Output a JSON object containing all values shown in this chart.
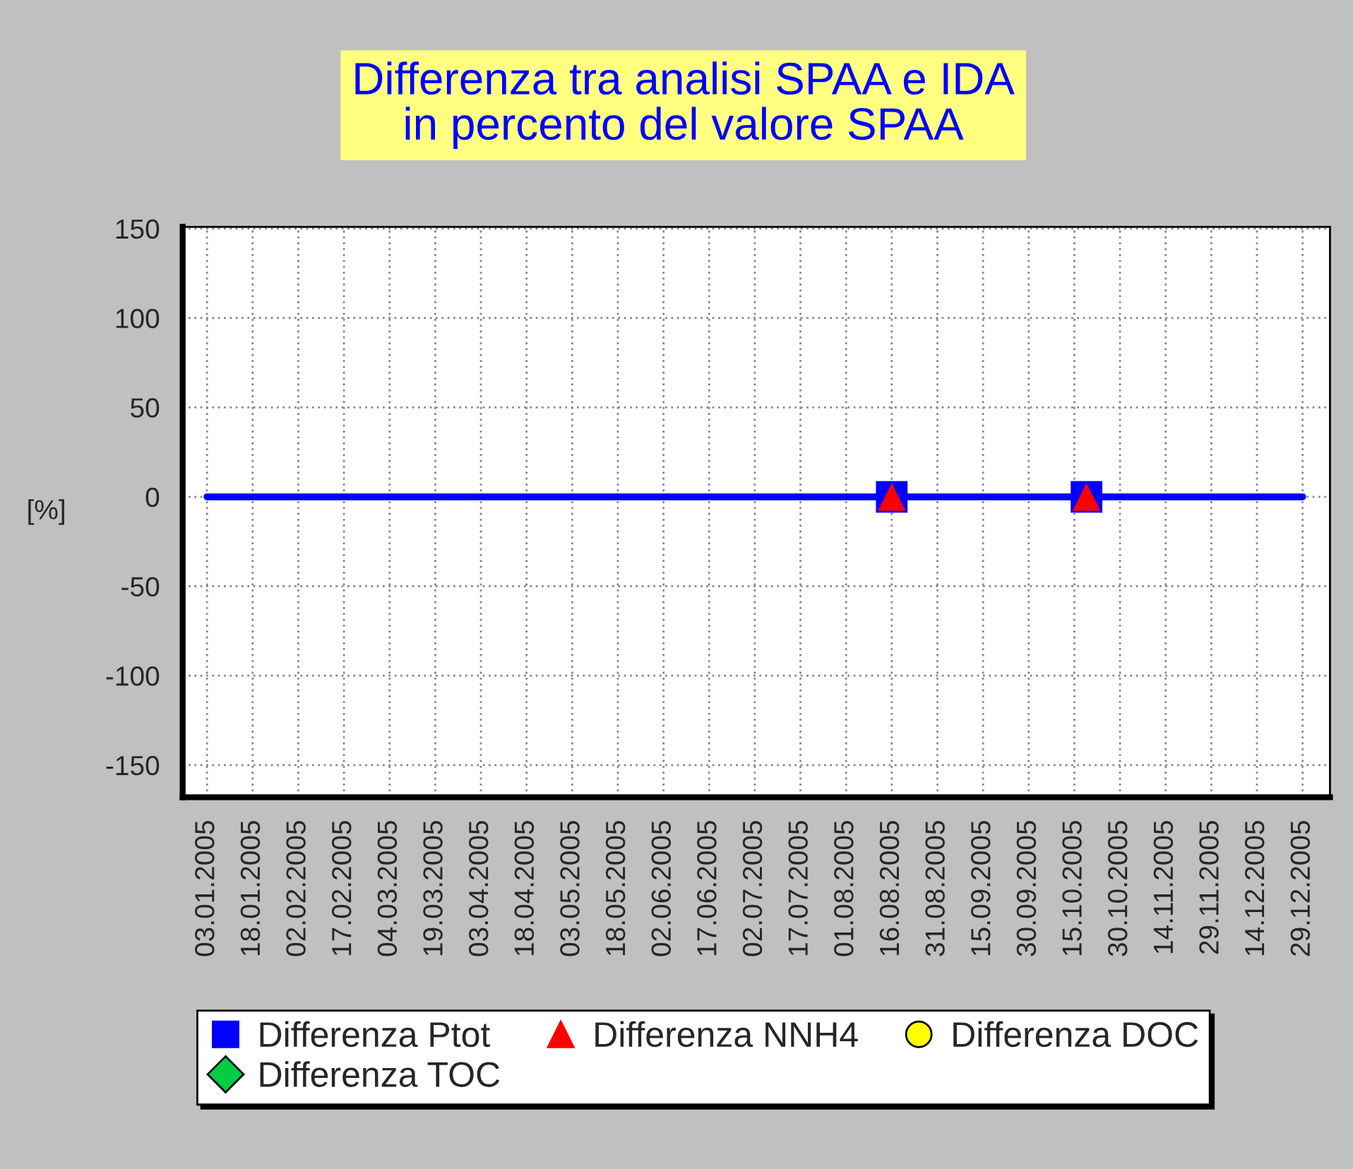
{
  "chart_data": {
    "type": "scatter",
    "title": "Differenza tra analisi SPAA e IDA\nin percento del valore SPAA",
    "ylabel": "[%]",
    "xlim": [
      "2004-12-26",
      "2006-01-07"
    ],
    "xticks": [
      {
        "value": "2005-01-03",
        "label": "03.01.2005"
      },
      {
        "value": "2005-01-18",
        "label": "18.01.2005"
      },
      {
        "value": "2005-02-02",
        "label": "02.02.2005"
      },
      {
        "value": "2005-02-17",
        "label": "17.02.2005"
      },
      {
        "value": "2005-03-04",
        "label": "04.03.2005"
      },
      {
        "value": "2005-03-19",
        "label": "19.03.2005"
      },
      {
        "value": "2005-04-03",
        "label": "03.04.2005"
      },
      {
        "value": "2005-04-18",
        "label": "18.04.2005"
      },
      {
        "value": "2005-05-03",
        "label": "03.05.2005"
      },
      {
        "value": "2005-05-18",
        "label": "18.05.2005"
      },
      {
        "value": "2005-06-02",
        "label": "02.06.2005"
      },
      {
        "value": "2005-06-17",
        "label": "17.06.2005"
      },
      {
        "value": "2005-07-02",
        "label": "02.07.2005"
      },
      {
        "value": "2005-07-17",
        "label": "17.07.2005"
      },
      {
        "value": "2005-08-01",
        "label": "01.08.2005"
      },
      {
        "value": "2005-08-16",
        "label": "16.08.2005"
      },
      {
        "value": "2005-08-31",
        "label": "31.08.2005"
      },
      {
        "value": "2005-09-15",
        "label": "15.09.2005"
      },
      {
        "value": "2005-09-30",
        "label": "30.09.2005"
      },
      {
        "value": "2005-10-15",
        "label": "15.10.2005"
      },
      {
        "value": "2005-10-30",
        "label": "30.10.2005"
      },
      {
        "value": "2005-11-14",
        "label": "14.11.2005"
      },
      {
        "value": "2005-11-29",
        "label": "29.11.2005"
      },
      {
        "value": "2005-12-14",
        "label": "14.12.2005"
      },
      {
        "value": "2005-12-29",
        "label": "29.12.2005"
      }
    ],
    "ylim": [
      -168,
      151
    ],
    "yticks": [
      -150,
      -100,
      -50,
      0,
      50,
      100,
      150
    ],
    "grid": true,
    "legend": "bottom",
    "ref_lines": [
      {
        "axis": "y",
        "value": 0,
        "color": "#0000ff"
      }
    ],
    "series": [
      {
        "name": "Differenza Ptot",
        "color": "#0000ff",
        "marker": "square",
        "x": [
          "2005-08-16",
          "2005-10-19"
        ],
        "values": [
          0,
          0
        ]
      },
      {
        "name": "Differenza NNH4",
        "color": "#ff0000",
        "marker": "triangle",
        "x": [
          "2005-08-16",
          "2005-10-19"
        ],
        "values": [
          0,
          0
        ]
      },
      {
        "name": "Differenza DOC",
        "color": "#ffff00",
        "marker": "circle"
      },
      {
        "name": "Differenza TOC",
        "color": "#00cc44",
        "marker": "diamond"
      }
    ]
  }
}
